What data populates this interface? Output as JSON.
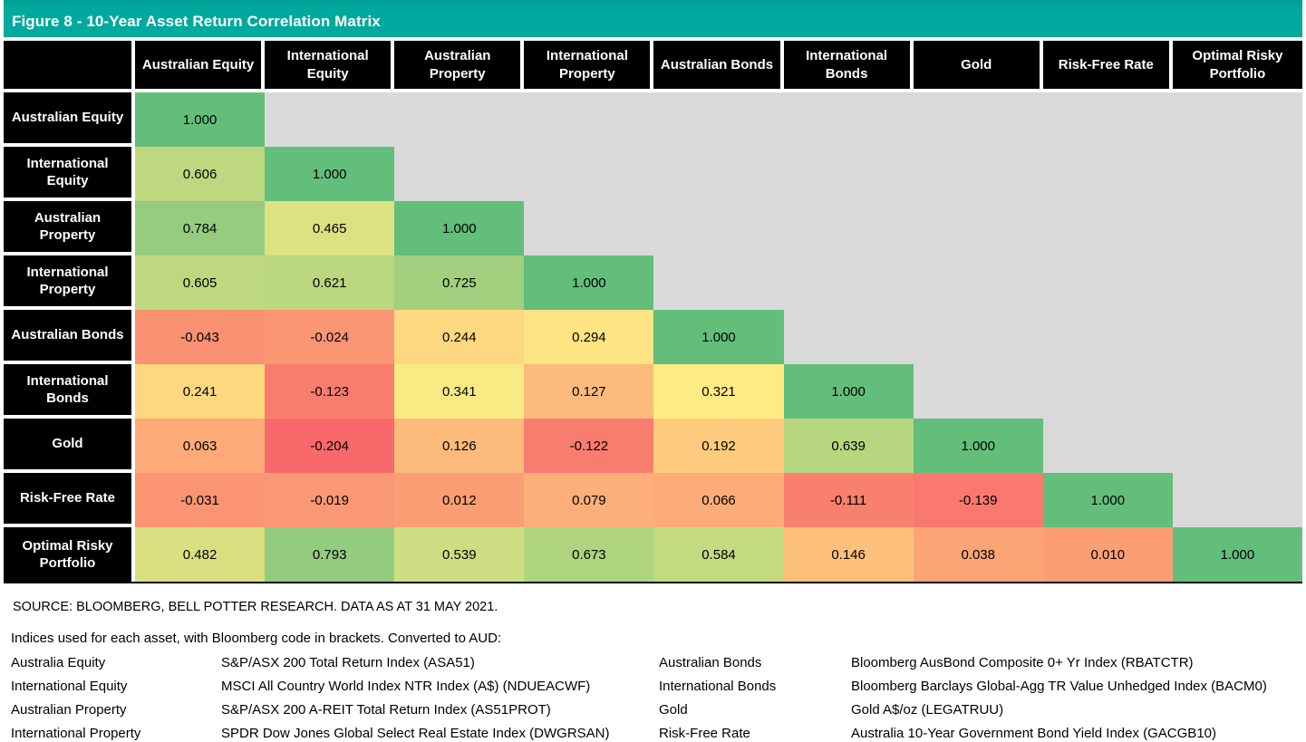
{
  "title": "Figure 8 - 10-Year Asset Return Correlation Matrix",
  "colors": {
    "accent_teal": "#00A99D",
    "accent_teal_dark": "#00A195",
    "header_bg": "#000000",
    "header_text": "#FFFFFF",
    "empty_cell": "#D9D9D9",
    "scale_min": "#F8696B",
    "scale_mid": "#FFEB84",
    "scale_max": "#63BE7B",
    "value_text": "#000000"
  },
  "chart_data": {
    "type": "heatmap",
    "title": "Figure 8 - 10-Year Asset Return Correlation Matrix",
    "categories": [
      "Australian Equity",
      "International Equity",
      "Australian Property",
      "International Property",
      "Australian Bonds",
      "International Bonds",
      "Gold",
      "Risk-Free Rate",
      "Optimal Risky Portfolio"
    ],
    "matrix_lower_triangle": [
      [
        1.0
      ],
      [
        0.606,
        1.0
      ],
      [
        0.784,
        0.465,
        1.0
      ],
      [
        0.605,
        0.621,
        0.725,
        1.0
      ],
      [
        -0.043,
        -0.024,
        0.244,
        0.294,
        1.0
      ],
      [
        0.241,
        -0.123,
        0.341,
        0.127,
        0.321,
        1.0
      ],
      [
        0.063,
        -0.204,
        0.126,
        -0.122,
        0.192,
        0.639,
        1.0
      ],
      [
        -0.031,
        -0.019,
        0.012,
        0.079,
        0.066,
        -0.111,
        -0.139,
        1.0
      ],
      [
        0.482,
        0.793,
        0.539,
        0.673,
        0.584,
        0.146,
        0.038,
        0.01,
        1.0
      ]
    ],
    "value_decimals": 3,
    "colormap": {
      "type": "red-yellow-green",
      "min": -0.204,
      "mid": 0.321,
      "max": 1.0
    },
    "legend_position": "none",
    "grid": false
  },
  "source": "SOURCE: BLOOMBERG, BELL POTTER RESEARCH. DATA AS AT 31 MAY 2021.",
  "indices_note": "Indices used for each asset, with Bloomberg code in brackets. Converted to AUD:",
  "indices": [
    {
      "asset": "Australia Equity",
      "index": "S&P/ASX 200 Total Return Index (ASA51)"
    },
    {
      "asset": "International Equity",
      "index": "MSCI All Country World Index NTR Index (A$) (NDUEACWF)"
    },
    {
      "asset": "Australian Property",
      "index": "S&P/ASX 200 A-REIT Total Return Index (AS51PROT)"
    },
    {
      "asset": "International Property",
      "index": "SPDR Dow Jones Global Select Real Estate Index (DWGRSAN)"
    },
    {
      "asset": "Australian Bonds",
      "index": "Bloomberg AusBond Composite 0+ Yr Index (RBATCTR)"
    },
    {
      "asset": "International Bonds",
      "index": "Bloomberg Barclays Global-Agg TR Value Unhedged Index (BACM0)"
    },
    {
      "asset": "Gold",
      "index": "Gold A$/oz (LEGATRUU)"
    },
    {
      "asset": "Risk-Free Rate",
      "index": "Australia 10-Year Government Bond Yield Index (GACGB10)"
    }
  ]
}
